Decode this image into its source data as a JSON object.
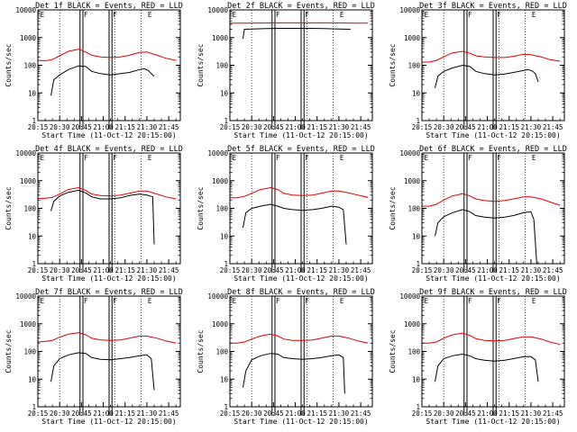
{
  "figure": {
    "x_axis_title": "Start Time (11-Oct-12 20:15:00)",
    "y_axis_title": "Counts/sec",
    "x_tick_labels": [
      "20:15",
      "20:30",
      "20:45",
      "21:00",
      "21:15",
      "21:30",
      "21:45"
    ],
    "y_tick_labels": [
      "1",
      "10",
      "100",
      "1000",
      "10000"
    ],
    "flag_labels": [
      "E",
      "F",
      "F",
      "E"
    ],
    "colors": {
      "events": "#000000",
      "lld": "#e00000",
      "axis": "#000000"
    }
  },
  "chart_data": [
    {
      "type": "line",
      "title": "Det 1f BLACK = Events, RED = LLD",
      "xlabel": "Start Time (11-Oct-12 20:15:00)",
      "ylabel": "Counts/sec",
      "xlim": [
        "20:15",
        "21:53"
      ],
      "ylim": [
        1,
        10000
      ],
      "yscale": "log",
      "series": [
        {
          "name": "Events",
          "color": "#000000",
          "x": [
            "20:24",
            "20:26",
            "20:30",
            "20:36",
            "20:43",
            "20:48",
            "20:52",
            "20:58",
            "21:05",
            "21:12",
            "21:18",
            "21:25",
            "21:28",
            "21:31",
            "21:33",
            "21:35"
          ],
          "values": [
            8,
            30,
            45,
            70,
            95,
            90,
            60,
            50,
            45,
            50,
            55,
            70,
            75,
            65,
            50,
            40
          ]
        },
        {
          "name": "LLD",
          "color": "#e00000",
          "x": [
            "20:15",
            "20:20",
            "20:25",
            "20:30",
            "20:36",
            "20:43",
            "20:48",
            "20:52",
            "20:58",
            "21:05",
            "21:12",
            "21:18",
            "21:25",
            "21:30",
            "21:37",
            "21:43",
            "21:50"
          ],
          "values": [
            150,
            145,
            160,
            220,
            320,
            380,
            300,
            230,
            200,
            190,
            200,
            230,
            290,
            300,
            230,
            180,
            150
          ]
        }
      ]
    },
    {
      "type": "line",
      "title": "Det 2f BLACK = Events, RED = LLD",
      "xlabel": "Start Time (11-Oct-12 20:15:00)",
      "ylabel": "Counts/sec",
      "xlim": [
        "20:15",
        "21:53"
      ],
      "ylim": [
        1,
        10000
      ],
      "yscale": "log",
      "series": [
        {
          "name": "Events",
          "color": "#000000",
          "x": [
            "20:24",
            "20:25",
            "20:30",
            "20:40",
            "20:50",
            "21:00",
            "21:10",
            "21:20",
            "21:30",
            "21:38"
          ],
          "values": [
            900,
            2000,
            2050,
            2100,
            2150,
            2150,
            2150,
            2100,
            2050,
            2000
          ]
        },
        {
          "name": "LLD",
          "color": "#e00000",
          "x": [
            "20:15",
            "20:25",
            "20:35",
            "20:45",
            "20:55",
            "21:05",
            "21:15",
            "21:25",
            "21:35",
            "21:45",
            "21:50"
          ],
          "values": [
            3300,
            3300,
            3350,
            3400,
            3400,
            3400,
            3400,
            3400,
            3350,
            3300,
            3300
          ]
        }
      ]
    },
    {
      "type": "line",
      "title": "Det 3f BLACK = Events, RED = LLD",
      "xlabel": "Start Time (11-Oct-12 20:15:00)",
      "ylabel": "Counts/sec",
      "xlim": [
        "20:15",
        "21:53"
      ],
      "ylim": [
        1,
        10000
      ],
      "yscale": "log",
      "series": [
        {
          "name": "Events",
          "color": "#000000",
          "x": [
            "20:24",
            "20:26",
            "20:30",
            "20:36",
            "20:43",
            "20:48",
            "20:52",
            "20:58",
            "21:05",
            "21:12",
            "21:18",
            "21:25",
            "21:28",
            "21:31",
            "21:33",
            "21:35"
          ],
          "values": [
            15,
            40,
            60,
            80,
            100,
            90,
            60,
            50,
            45,
            48,
            55,
            65,
            70,
            62,
            50,
            25
          ]
        },
        {
          "name": "LLD",
          "color": "#e00000",
          "x": [
            "20:15",
            "20:20",
            "20:25",
            "20:30",
            "20:36",
            "20:43",
            "20:48",
            "20:52",
            "20:58",
            "21:05",
            "21:12",
            "21:18",
            "21:25",
            "21:30",
            "21:37",
            "21:43",
            "21:50"
          ],
          "values": [
            130,
            130,
            150,
            200,
            280,
            320,
            270,
            220,
            200,
            190,
            190,
            210,
            250,
            240,
            200,
            160,
            140
          ]
        }
      ]
    },
    {
      "type": "line",
      "title": "Det 4f BLACK = Events, RED = LLD",
      "xlabel": "Start Time (11-Oct-12 20:15:00)",
      "ylabel": "Counts/sec",
      "xlim": [
        "20:15",
        "21:53"
      ],
      "ylim": [
        1,
        10000
      ],
      "yscale": "log",
      "series": [
        {
          "name": "Events",
          "color": "#000000",
          "x": [
            "20:24",
            "20:26",
            "20:30",
            "20:36",
            "20:43",
            "20:48",
            "20:52",
            "20:58",
            "21:05",
            "21:12",
            "21:18",
            "21:25",
            "21:30",
            "21:34",
            "21:35"
          ],
          "values": [
            80,
            180,
            280,
            380,
            450,
            360,
            260,
            220,
            220,
            240,
            290,
            330,
            300,
            260,
            5
          ]
        },
        {
          "name": "LLD",
          "color": "#e00000",
          "x": [
            "20:15",
            "20:20",
            "20:25",
            "20:30",
            "20:36",
            "20:43",
            "20:48",
            "20:52",
            "20:58",
            "21:05",
            "21:12",
            "21:18",
            "21:25",
            "21:30",
            "21:37",
            "21:43",
            "21:50"
          ],
          "values": [
            230,
            230,
            250,
            330,
            480,
            560,
            440,
            330,
            290,
            280,
            300,
            350,
            420,
            420,
            330,
            260,
            220
          ]
        }
      ]
    },
    {
      "type": "line",
      "title": "Det 5f BLACK = Events, RED = LLD",
      "xlabel": "Start Time (11-Oct-12 20:15:00)",
      "ylabel": "Counts/sec",
      "xlim": [
        "20:15",
        "21:53"
      ],
      "ylim": [
        1,
        10000
      ],
      "yscale": "log",
      "series": [
        {
          "name": "Events",
          "color": "#000000",
          "x": [
            "20:24",
            "20:26",
            "20:30",
            "20:36",
            "20:43",
            "20:48",
            "20:52",
            "20:58",
            "21:05",
            "21:12",
            "21:18",
            "21:25",
            "21:30",
            "21:33",
            "21:35"
          ],
          "values": [
            20,
            70,
            100,
            120,
            140,
            120,
            100,
            90,
            85,
            90,
            100,
            120,
            110,
            90,
            5
          ]
        },
        {
          "name": "LLD",
          "color": "#e00000",
          "x": [
            "20:15",
            "20:20",
            "20:25",
            "20:30",
            "20:36",
            "20:43",
            "20:48",
            "20:52",
            "20:58",
            "21:05",
            "21:12",
            "21:18",
            "21:25",
            "21:30",
            "21:37",
            "21:43",
            "21:50"
          ],
          "values": [
            240,
            240,
            270,
            350,
            480,
            560,
            480,
            350,
            300,
            290,
            300,
            350,
            420,
            420,
            360,
            300,
            250
          ]
        }
      ]
    },
    {
      "type": "line",
      "title": "Det 6f BLACK = Events, RED = LLD",
      "xlabel": "Start Time (11-Oct-12 20:15:00)",
      "ylabel": "Counts/sec",
      "xlim": [
        "20:15",
        "21:53"
      ],
      "ylim": [
        1,
        10000
      ],
      "yscale": "log",
      "series": [
        {
          "name": "Events",
          "color": "#000000",
          "x": [
            "20:24",
            "20:26",
            "20:30",
            "20:36",
            "20:43",
            "20:48",
            "20:52",
            "20:58",
            "21:05",
            "21:12",
            "21:18",
            "21:25",
            "21:30",
            "21:32",
            "21:34"
          ],
          "values": [
            10,
            30,
            50,
            70,
            90,
            75,
            55,
            48,
            45,
            48,
            55,
            70,
            75,
            40,
            1
          ]
        },
        {
          "name": "LLD",
          "color": "#e00000",
          "x": [
            "20:15",
            "20:20",
            "20:25",
            "20:30",
            "20:36",
            "20:43",
            "20:48",
            "20:52",
            "20:58",
            "21:05",
            "21:12",
            "21:18",
            "21:25",
            "21:30",
            "21:37",
            "21:43",
            "21:50"
          ],
          "values": [
            120,
            120,
            140,
            200,
            280,
            340,
            280,
            220,
            190,
            180,
            190,
            220,
            260,
            260,
            220,
            170,
            130
          ]
        }
      ]
    },
    {
      "type": "line",
      "title": "Det 7f BLACK = Events, RED = LLD",
      "xlabel": "Start Time (11-Oct-12 20:15:00)",
      "ylabel": "Counts/sec",
      "xlim": [
        "20:15",
        "21:53"
      ],
      "ylim": [
        1,
        10000
      ],
      "yscale": "log",
      "series": [
        {
          "name": "Events",
          "color": "#000000",
          "x": [
            "20:24",
            "20:26",
            "20:30",
            "20:36",
            "20:43",
            "20:48",
            "20:52",
            "20:58",
            "21:05",
            "21:12",
            "21:18",
            "21:25",
            "21:30",
            "21:33",
            "21:35"
          ],
          "values": [
            8,
            30,
            55,
            75,
            90,
            85,
            60,
            52,
            50,
            55,
            60,
            70,
            75,
            55,
            4
          ]
        },
        {
          "name": "LLD",
          "color": "#e00000",
          "x": [
            "20:15",
            "20:20",
            "20:25",
            "20:30",
            "20:36",
            "20:43",
            "20:48",
            "20:52",
            "20:58",
            "21:05",
            "21:12",
            "21:18",
            "21:25",
            "21:30",
            "21:37",
            "21:43",
            "21:50"
          ],
          "values": [
            220,
            230,
            250,
            330,
            420,
            480,
            400,
            300,
            260,
            250,
            260,
            300,
            360,
            360,
            300,
            240,
            200
          ]
        }
      ]
    },
    {
      "type": "line",
      "title": "Det 8f BLACK = Events, RED = LLD",
      "xlabel": "Start Time (11-Oct-12 20:15:00)",
      "ylabel": "Counts/sec",
      "xlim": [
        "20:15",
        "21:53"
      ],
      "ylim": [
        1,
        10000
      ],
      "yscale": "log",
      "series": [
        {
          "name": "Events",
          "color": "#000000",
          "x": [
            "20:24",
            "20:26",
            "20:30",
            "20:36",
            "20:43",
            "20:48",
            "20:52",
            "20:58",
            "21:05",
            "21:12",
            "21:18",
            "21:25",
            "21:30",
            "21:33",
            "21:34"
          ],
          "values": [
            5,
            20,
            50,
            70,
            85,
            80,
            60,
            55,
            52,
            55,
            60,
            70,
            75,
            60,
            3
          ]
        },
        {
          "name": "LLD",
          "color": "#e00000",
          "x": [
            "20:15",
            "20:20",
            "20:25",
            "20:30",
            "20:36",
            "20:43",
            "20:48",
            "20:52",
            "20:58",
            "21:05",
            "21:12",
            "21:18",
            "21:25",
            "21:30",
            "21:37",
            "21:43",
            "21:50"
          ],
          "values": [
            200,
            200,
            220,
            280,
            360,
            420,
            360,
            280,
            250,
            250,
            260,
            300,
            360,
            360,
            300,
            240,
            200
          ]
        }
      ]
    },
    {
      "type": "line",
      "title": "Det 9f BLACK = Events, RED = LLD",
      "xlabel": "Start Time (11-Oct-12 20:15:00)",
      "ylabel": "Counts/sec",
      "xlim": [
        "20:15",
        "21:53"
      ],
      "ylim": [
        1,
        10000
      ],
      "yscale": "log",
      "series": [
        {
          "name": "Events",
          "color": "#000000",
          "x": [
            "20:24",
            "20:26",
            "20:30",
            "20:36",
            "20:43",
            "20:48",
            "20:52",
            "20:58",
            "21:05",
            "21:12",
            "21:18",
            "21:25",
            "21:30",
            "21:33",
            "21:35"
          ],
          "values": [
            8,
            30,
            55,
            70,
            80,
            70,
            55,
            48,
            45,
            48,
            55,
            65,
            65,
            50,
            8
          ]
        },
        {
          "name": "LLD",
          "color": "#e00000",
          "x": [
            "20:15",
            "20:20",
            "20:25",
            "20:30",
            "20:36",
            "20:43",
            "20:48",
            "20:52",
            "20:58",
            "21:05",
            "21:12",
            "21:18",
            "21:25",
            "21:30",
            "21:37",
            "21:43",
            "21:50"
          ],
          "values": [
            200,
            200,
            220,
            300,
            400,
            460,
            380,
            290,
            250,
            240,
            250,
            290,
            340,
            340,
            280,
            220,
            180
          ]
        }
      ]
    }
  ]
}
